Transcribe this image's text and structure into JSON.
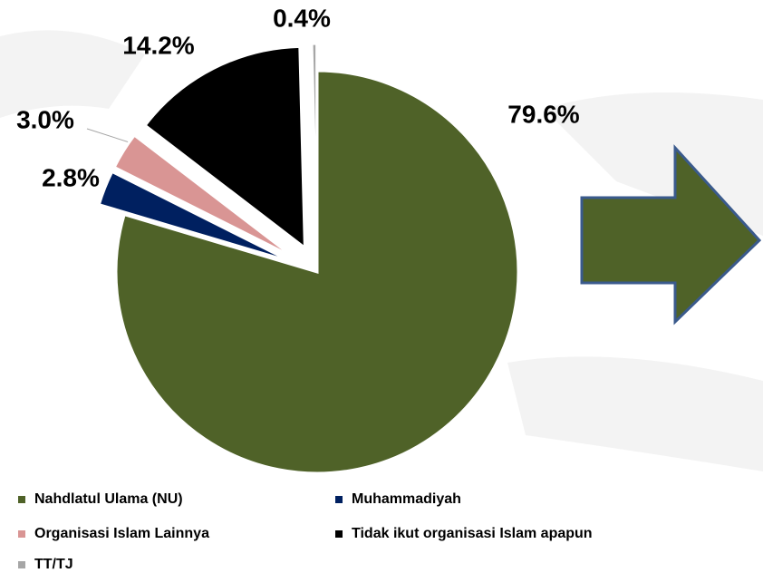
{
  "chart_data": {
    "type": "pie",
    "categories": [
      "Nahdlatul Ulama (NU)",
      "Muhammadiyah",
      "Organisasi Islam Lainnya",
      "Tidak ikut organisasi Islam apapun",
      "TT/TJ"
    ],
    "values": [
      79.6,
      2.8,
      3.0,
      14.2,
      0.4
    ],
    "value_labels": [
      "79.6%",
      "2.8%",
      "3.0%",
      "14.2%",
      "0.4%"
    ],
    "colors": [
      "#4f6228",
      "#002060",
      "#d99594",
      "#000000",
      "#a6a6a6"
    ],
    "legend": "bottom"
  }
}
